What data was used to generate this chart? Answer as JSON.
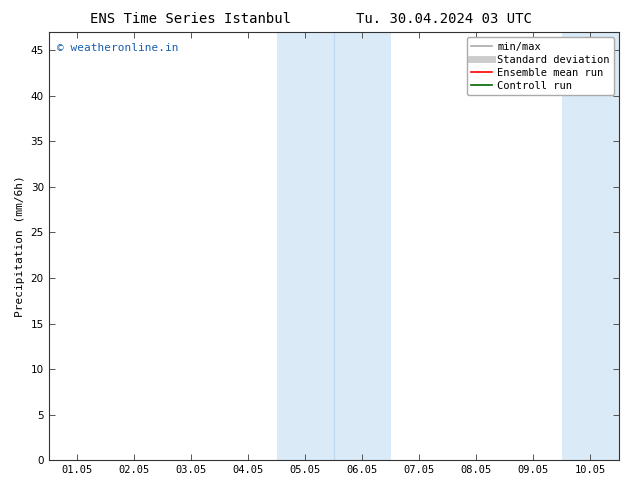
{
  "title_left": "ENS Time Series Istanbul",
  "title_right": "Tu. 30.04.2024 03 UTC",
  "ylabel": "Precipitation (mm/6h)",
  "ylim": [
    0,
    47
  ],
  "yticks": [
    0,
    5,
    10,
    15,
    20,
    25,
    30,
    35,
    40,
    45
  ],
  "xtick_labels": [
    "01.05",
    "02.05",
    "03.05",
    "04.05",
    "05.05",
    "06.05",
    "07.05",
    "08.05",
    "09.05",
    "10.05"
  ],
  "xtick_positions": [
    0,
    1,
    2,
    3,
    4,
    5,
    6,
    7,
    8,
    9
  ],
  "xlim": [
    -0.5,
    9.5
  ],
  "background_color": "#ffffff",
  "plot_bg_color": "#ffffff",
  "shaded_regions": [
    {
      "x_start": 3.5,
      "x_end": 4.5,
      "color": "#daeaf7"
    },
    {
      "x_start": 4.5,
      "x_end": 5.5,
      "color": "#daeaf7"
    },
    {
      "x_start": 8.5,
      "x_end": 9.5,
      "color": "#daeaf7"
    }
  ],
  "inner_vlines": [
    4.5
  ],
  "inner_vline_color": "#c0d8ee",
  "watermark_text": "© weatheronline.in",
  "watermark_color": "#1a5faf",
  "watermark_fontsize": 8,
  "legend_items": [
    {
      "label": "min/max",
      "color": "#aaaaaa",
      "lw": 1.2,
      "linestyle": "-"
    },
    {
      "label": "Standard deviation",
      "color": "#cccccc",
      "lw": 5,
      "linestyle": "-"
    },
    {
      "label": "Ensemble mean run",
      "color": "#ff0000",
      "lw": 1.2,
      "linestyle": "-"
    },
    {
      "label": "Controll run",
      "color": "#006600",
      "lw": 1.2,
      "linestyle": "-"
    }
  ],
  "title_fontsize": 10,
  "axis_label_fontsize": 8,
  "tick_fontsize": 7.5
}
